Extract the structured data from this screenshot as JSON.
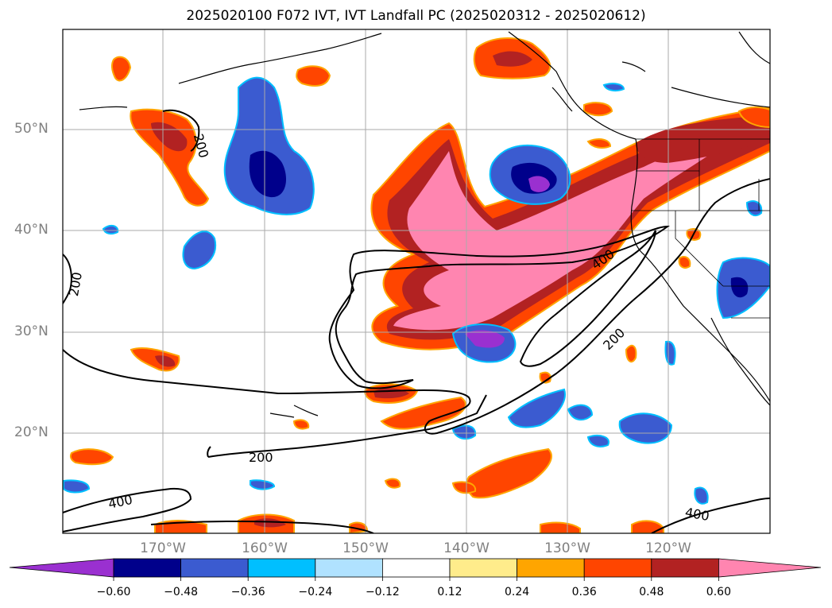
{
  "title": "2025020100 F072 IVT, IVT Landfall PC (2025020312 - 2025020612)",
  "lat_labels": [
    "50°N",
    "40°N",
    "30°N",
    "20°N"
  ],
  "lon_labels": [
    "170°W",
    "160°W",
    "150°W",
    "140°W",
    "130°W",
    "120°W"
  ],
  "contour_labels": {
    "c200_nw": "200",
    "c200_w": "200",
    "c200_center": "200",
    "c200_south": "200",
    "c400_ne": "400",
    "c400_sw": "400",
    "c400_se": "400"
  },
  "colorbar": {
    "tick_labels": [
      "−0.60",
      "−0.48",
      "−0.36",
      "−0.24",
      "−0.12",
      "0.12",
      "0.24",
      "0.36",
      "0.48",
      "0.60"
    ],
    "colors": [
      "#9a30d0",
      "#00008b",
      "#3b5bd0",
      "#00bfff",
      "#b0e2ff",
      "#ffffff",
      "#ffec8b",
      "#ffa500",
      "#ff4500",
      "#b22222",
      "#ff85b0"
    ]
  }
}
